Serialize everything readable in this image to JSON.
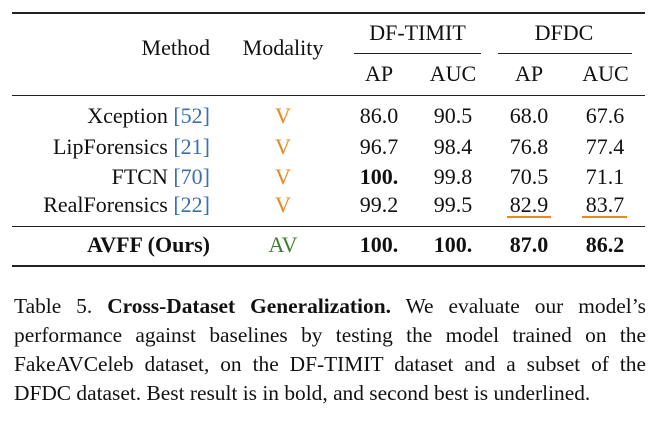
{
  "table": {
    "headers": {
      "method": "Method",
      "modality": "Modality",
      "group1": "DF-TIMIT",
      "group2": "DFDC",
      "ap": "AP",
      "auc": "AUC"
    },
    "rows": [
      {
        "method": "Xception",
        "cite": "52",
        "modality": "V",
        "v1": "86.0",
        "v2": "90.5",
        "v3": "68.0",
        "v4": "67.6"
      },
      {
        "method": "LipForensics",
        "cite": "21",
        "modality": "V",
        "v1": "96.7",
        "v2": "98.4",
        "v3": "76.8",
        "v4": "77.4"
      },
      {
        "method": "FTCN",
        "cite": "70",
        "modality": "V",
        "v1": "100.",
        "v2": "99.8",
        "v3": "70.5",
        "v4": "71.1"
      },
      {
        "method": "RealForensics",
        "cite": "22",
        "modality": "V",
        "v1": "99.2",
        "v2": "99.5",
        "v3": "82.9",
        "v4": "83.7"
      }
    ],
    "ours": {
      "method": "AVFF (Ours)",
      "modality": "AV",
      "v1": "100.",
      "v2": "100.",
      "v3": "87.0",
      "v4": "86.2"
    },
    "colors": {
      "citation": "#3a6fb0",
      "modality_v": "#e8891e",
      "modality_av": "#3f7f2e",
      "underline": "#e8891e"
    }
  },
  "caption": {
    "label": "Table 5.",
    "title": "Cross-Dataset Generalization.",
    "body": "We evaluate our model’s performance against baselines by testing the model trained on the FakeAVCeleb dataset, on the DF-TIMIT dataset and a subset of the DFDC dataset. Best result is in bold, and second best is underlined."
  }
}
